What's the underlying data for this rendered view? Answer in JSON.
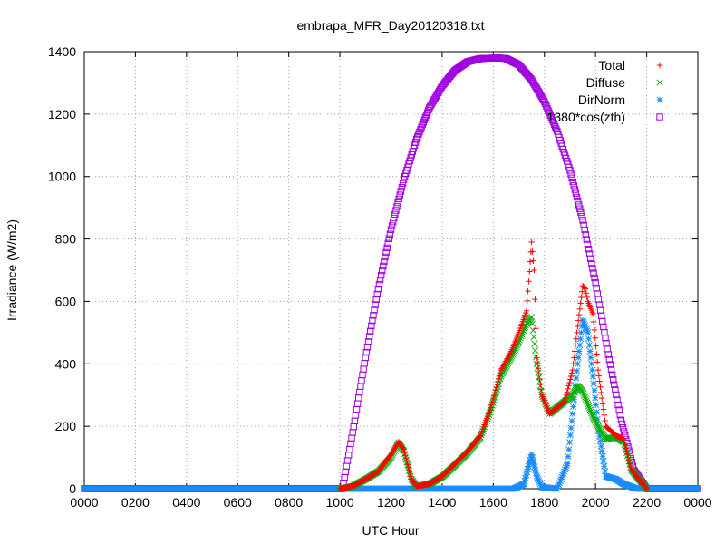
{
  "chart_data": {
    "type": "scatter",
    "title": "embrapa_MFR_Day20120318.txt",
    "xlabel": "UTC Hour",
    "ylabel": "Irradiance (W/m2)",
    "xlim": [
      0,
      24
    ],
    "ylim": [
      0,
      1400
    ],
    "x_ticks": [
      0,
      2,
      4,
      6,
      8,
      10,
      12,
      14,
      16,
      18,
      20,
      22,
      24
    ],
    "x_tick_labels": [
      "0000",
      "0200",
      "0400",
      "0600",
      "0800",
      "1000",
      "1200",
      "1400",
      "1600",
      "1800",
      "2000",
      "2200",
      "0000"
    ],
    "y_ticks": [
      0,
      200,
      400,
      600,
      800,
      1000,
      1200,
      1400
    ],
    "y_tick_labels": [
      "0",
      "200",
      "400",
      "600",
      "800",
      "1000",
      "1200",
      "1400"
    ],
    "grid": true,
    "legend_position": "top-right",
    "series": [
      {
        "name": "Total",
        "color": "#ff0000",
        "marker": "plus",
        "points": [
          [
            10,
            0
          ],
          [
            10.5,
            8
          ],
          [
            11,
            30
          ],
          [
            11.5,
            55
          ],
          [
            12,
            110
          ],
          [
            12.3,
            150
          ],
          [
            12.5,
            125
          ],
          [
            12.8,
            30
          ],
          [
            13,
            8
          ],
          [
            13.5,
            15
          ],
          [
            14,
            40
          ],
          [
            14.5,
            80
          ],
          [
            15,
            120
          ],
          [
            15.5,
            170
          ],
          [
            15.9,
            260
          ],
          [
            16.3,
            380
          ],
          [
            16.7,
            440
          ],
          [
            17,
            500
          ],
          [
            17.3,
            570
          ],
          [
            17.5,
            790
          ],
          [
            17.6,
            700
          ],
          [
            17.7,
            420
          ],
          [
            17.9,
            300
          ],
          [
            18.2,
            240
          ],
          [
            18.5,
            260
          ],
          [
            18.8,
            280
          ],
          [
            19.1,
            380
          ],
          [
            19.3,
            520
          ],
          [
            19.5,
            650
          ],
          [
            19.6,
            640
          ],
          [
            19.7,
            600
          ],
          [
            19.9,
            560
          ],
          [
            20.1,
            380
          ],
          [
            20.4,
            200
          ],
          [
            20.8,
            170
          ],
          [
            21.1,
            160
          ],
          [
            21.4,
            60
          ],
          [
            21.8,
            20
          ],
          [
            22,
            0
          ]
        ]
      },
      {
        "name": "Diffuse",
        "color": "#00b000",
        "marker": "cross",
        "points": [
          [
            10,
            0
          ],
          [
            10.5,
            8
          ],
          [
            11,
            30
          ],
          [
            11.5,
            55
          ],
          [
            12,
            100
          ],
          [
            12.3,
            148
          ],
          [
            12.5,
            120
          ],
          [
            12.8,
            30
          ],
          [
            13,
            8
          ],
          [
            13.5,
            15
          ],
          [
            14,
            38
          ],
          [
            14.5,
            75
          ],
          [
            15,
            115
          ],
          [
            15.5,
            165
          ],
          [
            15.9,
            250
          ],
          [
            16.3,
            360
          ],
          [
            16.7,
            420
          ],
          [
            17,
            470
          ],
          [
            17.3,
            530
          ],
          [
            17.5,
            550
          ],
          [
            17.7,
            400
          ],
          [
            17.9,
            300
          ],
          [
            18.2,
            240
          ],
          [
            18.5,
            260
          ],
          [
            18.8,
            280
          ],
          [
            19.1,
            300
          ],
          [
            19.3,
            330
          ],
          [
            19.5,
            310
          ],
          [
            19.7,
            270
          ],
          [
            19.9,
            230
          ],
          [
            20.1,
            200
          ],
          [
            20.4,
            160
          ],
          [
            20.8,
            165
          ],
          [
            21.1,
            150
          ],
          [
            21.4,
            60
          ],
          [
            21.8,
            20
          ],
          [
            22,
            0
          ]
        ]
      },
      {
        "name": "DirNorm",
        "color": "#1a8cff",
        "marker": "star",
        "points": [
          [
            0,
            0
          ],
          [
            2,
            0
          ],
          [
            4,
            0
          ],
          [
            6,
            0
          ],
          [
            8,
            0
          ],
          [
            10,
            0
          ],
          [
            11,
            0
          ],
          [
            12,
            0
          ],
          [
            13,
            0
          ],
          [
            14,
            0
          ],
          [
            15,
            0
          ],
          [
            16,
            0
          ],
          [
            16.8,
            0
          ],
          [
            17.2,
            15
          ],
          [
            17.5,
            110
          ],
          [
            17.7,
            40
          ],
          [
            17.9,
            5
          ],
          [
            18.5,
            0
          ],
          [
            18.9,
            80
          ],
          [
            19.1,
            240
          ],
          [
            19.3,
            400
          ],
          [
            19.5,
            540
          ],
          [
            19.7,
            500
          ],
          [
            19.9,
            360
          ],
          [
            20.1,
            200
          ],
          [
            20.4,
            40
          ],
          [
            20.8,
            30
          ],
          [
            21.1,
            15
          ],
          [
            21.6,
            0
          ],
          [
            22,
            0
          ],
          [
            24,
            0
          ]
        ]
      },
      {
        "name": "1380*cos(zth)",
        "color": "#a000e0",
        "marker": "square",
        "points": [
          [
            0,
            0
          ],
          [
            2,
            0
          ],
          [
            4,
            0
          ],
          [
            6,
            0
          ],
          [
            8,
            0
          ],
          [
            9.5,
            0
          ],
          [
            10.1,
            0
          ],
          [
            10.5,
            180
          ],
          [
            11,
            420
          ],
          [
            11.5,
            640
          ],
          [
            12,
            830
          ],
          [
            12.5,
            990
          ],
          [
            13,
            1120
          ],
          [
            13.5,
            1220
          ],
          [
            14,
            1290
          ],
          [
            14.5,
            1340
          ],
          [
            15,
            1368
          ],
          [
            15.5,
            1378
          ],
          [
            16.2,
            1380
          ],
          [
            16.5,
            1378
          ],
          [
            17,
            1358
          ],
          [
            17.5,
            1310
          ],
          [
            18,
            1240
          ],
          [
            18.5,
            1145
          ],
          [
            19,
            1020
          ],
          [
            19.5,
            860
          ],
          [
            20,
            660
          ],
          [
            20.5,
            430
          ],
          [
            21,
            220
          ],
          [
            21.5,
            60
          ],
          [
            22,
            0
          ],
          [
            23,
            0
          ],
          [
            24,
            0
          ]
        ]
      }
    ]
  }
}
